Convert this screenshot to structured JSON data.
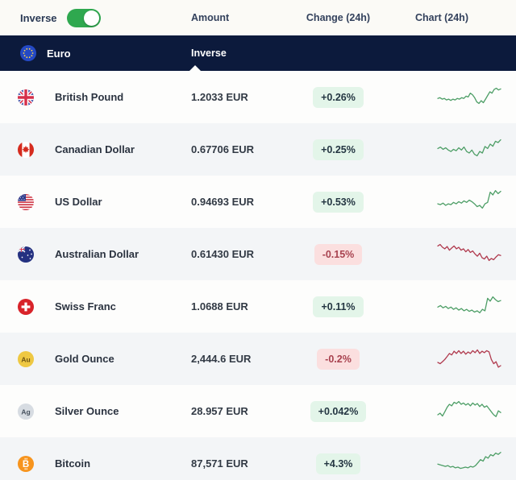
{
  "colors": {
    "navy_bar": "#0c1a3c",
    "toggle_on": "#2fa84f",
    "badge_up_bg": "#e3f5e9",
    "badge_down_bg": "#fbdfdf",
    "spark_up": "#4d9e66",
    "spark_down": "#b03a4e"
  },
  "toolbar": {
    "inverse_label": "Inverse",
    "inverse_toggle_state": "on",
    "columns": {
      "amount": "Amount",
      "change": "Change (24h)",
      "chart": "Chart (24h)"
    }
  },
  "base_currency": {
    "name": "Euro",
    "icon": "eu-flag-icon",
    "amount_header": "Inverse"
  },
  "rows": [
    {
      "name": "British Pound",
      "icon": "uk-flag-icon",
      "amount": "1.2033 EUR",
      "change": "+0.26%",
      "direction": "up",
      "spark": [
        38,
        41,
        35,
        38,
        32,
        35,
        30,
        35,
        32,
        38,
        35,
        41,
        38,
        47,
        44,
        59,
        53,
        41,
        24,
        18,
        29,
        21,
        35,
        50,
        65,
        59,
        74,
        79,
        72,
        76
      ]
    },
    {
      "name": "Canadian Dollar",
      "icon": "canada-flag-icon",
      "amount": "0.67706 EUR",
      "change": "+0.25%",
      "direction": "up",
      "spark": [
        47,
        53,
        44,
        50,
        41,
        35,
        44,
        38,
        50,
        41,
        53,
        35,
        29,
        41,
        24,
        18,
        35,
        29,
        55,
        47,
        65,
        56,
        76,
        71,
        82
      ]
    },
    {
      "name": "US Dollar",
      "icon": "us-flag-icon",
      "amount": "0.94693 EUR",
      "change": "+0.53%",
      "direction": "up",
      "spark": [
        35,
        32,
        38,
        29,
        35,
        32,
        41,
        35,
        44,
        38,
        47,
        41,
        50,
        44,
        35,
        24,
        29,
        18,
        35,
        41,
        82,
        71,
        88,
        76,
        85
      ]
    },
    {
      "name": "Australian Dollar",
      "icon": "australia-flag-icon",
      "amount": "0.61430 EUR",
      "change": "-0.15%",
      "direction": "down",
      "spark": [
        76,
        82,
        71,
        65,
        74,
        59,
        68,
        76,
        65,
        71,
        59,
        65,
        53,
        62,
        50,
        56,
        44,
        35,
        47,
        29,
        24,
        35,
        18,
        26,
        21,
        32,
        41,
        38
      ]
    },
    {
      "name": "Swiss Franc",
      "icon": "switzerland-flag-icon",
      "amount": "1.0688 EUR",
      "change": "+0.11%",
      "direction": "up",
      "spark": [
        41,
        47,
        38,
        44,
        35,
        41,
        32,
        38,
        29,
        35,
        26,
        32,
        24,
        29,
        21,
        26,
        18,
        32,
        26,
        76,
        65,
        82,
        71,
        63,
        67
      ]
    },
    {
      "name": "Gold Ounce",
      "icon": "gold-icon",
      "amount": "2,444.6 EUR",
      "change": "-0.2%",
      "direction": "down",
      "spark": [
        29,
        24,
        32,
        41,
        53,
        65,
        59,
        74,
        65,
        76,
        65,
        74,
        62,
        71,
        65,
        76,
        68,
        79,
        65,
        74,
        68,
        76,
        71,
        41,
        24,
        32,
        10,
        16
      ]
    },
    {
      "name": "Silver Ounce",
      "icon": "silver-icon",
      "amount": "28.957 EUR",
      "change": "+0.042%",
      "direction": "up",
      "spark": [
        29,
        35,
        24,
        41,
        59,
        71,
        65,
        79,
        74,
        82,
        71,
        76,
        68,
        74,
        65,
        76,
        68,
        74,
        62,
        71,
        59,
        65,
        53,
        41,
        29,
        22,
        45,
        38
      ]
    },
    {
      "name": "Bitcoin",
      "icon": "bitcoin-icon",
      "amount": "87,571 EUR",
      "change": "+4.3%",
      "direction": "up",
      "spark": [
        41,
        38,
        35,
        32,
        35,
        29,
        32,
        26,
        29,
        24,
        26,
        29,
        26,
        32,
        29,
        35,
        47,
        59,
        53,
        71,
        65,
        79,
        74,
        85,
        80,
        88
      ]
    }
  ]
}
